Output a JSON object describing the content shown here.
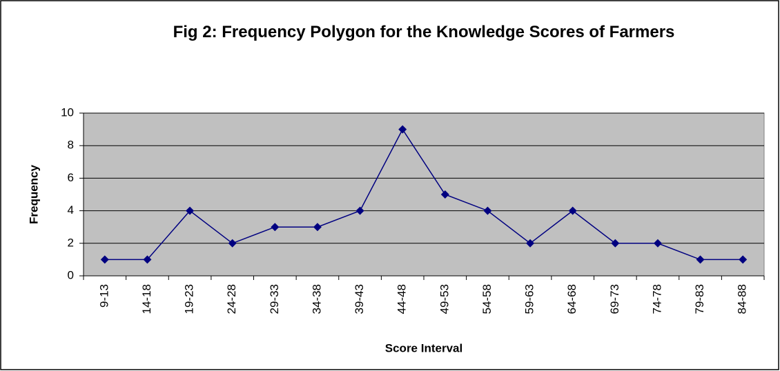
{
  "chart_data": {
    "type": "line",
    "title": "Fig 2: Frequency Polygon for the Knowledge Scores of Farmers",
    "xlabel": "Score Interval",
    "ylabel": "Frequency",
    "categories": [
      "9-13",
      "14-18",
      "19-23",
      "24-28",
      "29-33",
      "34-38",
      "39-43",
      "44-48",
      "49-53",
      "54-58",
      "59-63",
      "64-68",
      "69-73",
      "74-78",
      "79-83",
      "84-88"
    ],
    "values": [
      1,
      1,
      4,
      2,
      3,
      3,
      4,
      9,
      5,
      4,
      2,
      4,
      2,
      2,
      1,
      1
    ],
    "color": "#000080",
    "ylim": [
      0,
      10
    ],
    "yticks": [
      0,
      2,
      4,
      6,
      8,
      10
    ],
    "grid": true,
    "plot_background": "#c0c0c0"
  }
}
